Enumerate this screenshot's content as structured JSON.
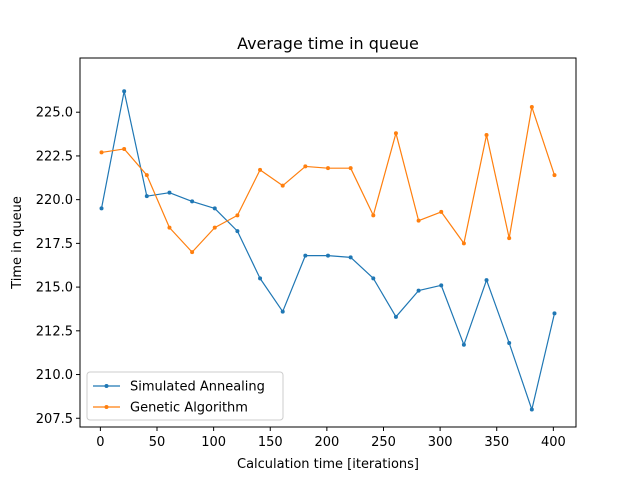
{
  "chart_data": {
    "type": "line",
    "title": "Average time in queue",
    "xlabel": "Calculation time [iterations]",
    "ylabel": "Time in queue",
    "xlim": [
      -18,
      420
    ],
    "ylim": [
      207.0,
      228.1
    ],
    "x_ticks": [
      0,
      50,
      100,
      150,
      200,
      250,
      300,
      350,
      400
    ],
    "x_tick_labels": [
      "0",
      "50",
      "100",
      "150",
      "200",
      "250",
      "300",
      "350",
      "400"
    ],
    "y_ticks": [
      207.5,
      210.0,
      212.5,
      215.0,
      217.5,
      220.0,
      222.5,
      225.0
    ],
    "y_tick_labels": [
      "207.5",
      "210.0",
      "212.5",
      "215.0",
      "217.5",
      "220.0",
      "222.5",
      "225.0"
    ],
    "grid": false,
    "legend_position": "lower-left",
    "x": [
      1,
      21,
      41,
      61,
      81,
      101,
      121,
      141,
      161,
      181,
      201,
      221,
      241,
      261,
      281,
      301,
      321,
      341,
      361,
      381,
      401
    ],
    "series": [
      {
        "name": "Simulated Annealing",
        "color": "#1f77b4",
        "values": [
          219.5,
          226.2,
          220.2,
          220.4,
          219.9,
          219.5,
          218.2,
          215.5,
          213.6,
          216.8,
          216.8,
          216.7,
          215.5,
          213.3,
          214.8,
          215.1,
          211.7,
          215.4,
          211.8,
          208.0,
          213.5
        ]
      },
      {
        "name": "Genetic Algorithm",
        "color": "#ff7f0e",
        "values": [
          222.7,
          222.9,
          221.4,
          218.4,
          217.0,
          218.4,
          219.1,
          221.7,
          220.8,
          221.9,
          221.8,
          221.8,
          219.1,
          223.8,
          218.8,
          219.3,
          217.5,
          223.7,
          217.8,
          225.3,
          221.4
        ]
      }
    ]
  }
}
